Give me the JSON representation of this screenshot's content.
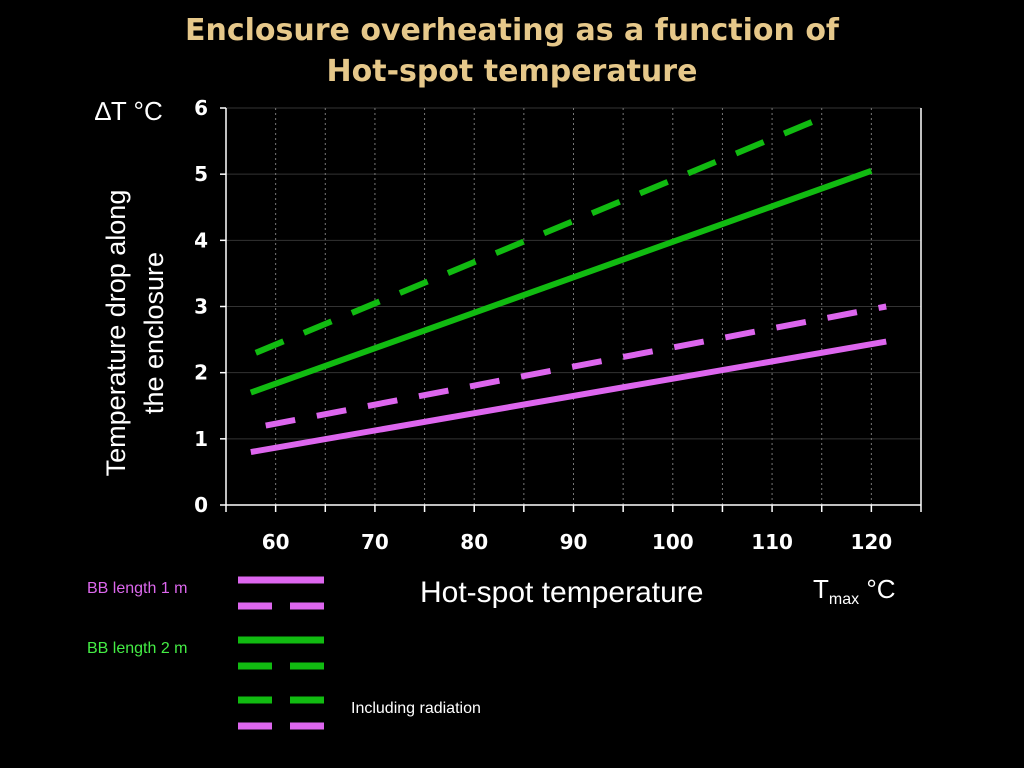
{
  "colors": {
    "background": "#000000",
    "title": "#e6c88a",
    "bb1": "#dd66ee",
    "bb2": "#11bb11",
    "bb1_label": "#dd66ee",
    "bb2_label": "#44ee44",
    "axis": "#ffffff",
    "grid_h": "#333333",
    "grid_v": "#777777"
  },
  "chart_data": {
    "type": "line",
    "title_line1": "Enclosure overheating as a function of",
    "title_line2": "Hot-spot temperature",
    "ylabel_unit": "∆T °C",
    "ylabel_line1": "Temperature drop along",
    "ylabel_line2": "the enclosure",
    "xlabel": "Hot-spot temperature",
    "xunit_main": "T",
    "xunit_sub": "max",
    "xunit_tail": " °C",
    "xlim": [
      55,
      125
    ],
    "ylim": [
      0,
      6
    ],
    "xticks": [
      60,
      70,
      80,
      90,
      100,
      110,
      120
    ],
    "yticks": [
      0,
      1,
      2,
      3,
      4,
      5,
      6
    ],
    "grid": "on",
    "series": [
      {
        "key": "bb2_rad",
        "group": "BB length 2 m",
        "style": "dashed",
        "color": "#11bb11",
        "x": [
          58,
          115
        ],
        "y": [
          2.3,
          5.85
        ]
      },
      {
        "key": "bb2",
        "group": "BB length 2 m",
        "style": "solid",
        "color": "#11bb11",
        "x": [
          57.5,
          120
        ],
        "y": [
          1.7,
          5.05
        ]
      },
      {
        "key": "bb1_rad",
        "group": "BB length 1 m",
        "style": "dashed",
        "color": "#dd66ee",
        "x": [
          59,
          121.5
        ],
        "y": [
          1.2,
          3.0
        ]
      },
      {
        "key": "bb1",
        "group": "BB length 1 m",
        "style": "solid",
        "color": "#dd66ee",
        "x": [
          57.5,
          121.5
        ],
        "y": [
          0.8,
          2.47
        ]
      }
    ]
  },
  "legend": {
    "bb1_label": "BB length 1 m",
    "bb2_label": "BB length 2 m",
    "radiation_label": "Including radiation"
  }
}
